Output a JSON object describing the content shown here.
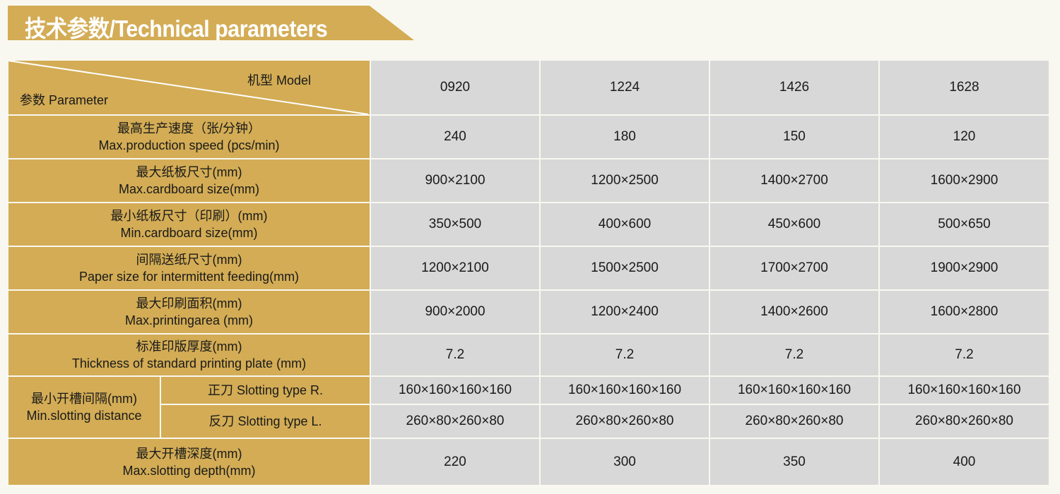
{
  "title": "技术参数/Technical parameters",
  "header": {
    "model_label": "机型 Model",
    "parameter_label": "参数 Parameter",
    "models": [
      "0920",
      "1224",
      "1426",
      "1628"
    ]
  },
  "rows": [
    {
      "zh": "最高生产速度（张/分钟）",
      "en": "Max.production speed (pcs/min)",
      "values": [
        "240",
        "180",
        "150",
        "120"
      ]
    },
    {
      "zh": "最大纸板尺寸(mm)",
      "en": "Max.cardboard size(mm)",
      "values": [
        "900×2100",
        "1200×2500",
        "1400×2700",
        "1600×2900"
      ]
    },
    {
      "zh": "最小纸板尺寸（印刷）(mm)",
      "en": "Min.cardboard size(mm)",
      "values": [
        "350×500",
        "400×600",
        "450×600",
        "500×650"
      ]
    },
    {
      "zh": "间隔送纸尺寸(mm)",
      "en": "Paper size for intermittent feeding(mm)",
      "values": [
        "1200×2100",
        "1500×2500",
        "1700×2700",
        "1900×2900"
      ]
    },
    {
      "zh": "最大印刷面积(mm)",
      "en": "Max.printingarea (mm)",
      "values": [
        "900×2000",
        "1200×2400",
        "1400×2600",
        "1600×2800"
      ]
    },
    {
      "zh": "标准印版厚度(mm)",
      "en": "Thickness of standard printing plate (mm)",
      "values": [
        "7.2",
        "7.2",
        "7.2",
        "7.2"
      ]
    }
  ],
  "slotting": {
    "zh": "最小开槽间隔(mm)",
    "en": "Min.slotting distance",
    "sub": [
      {
        "label": "正刀 Slotting type R.",
        "values": [
          "160×160×160×160",
          "160×160×160×160",
          "160×160×160×160",
          "160×160×160×160"
        ]
      },
      {
        "label": "反刀 Slotting type L.",
        "values": [
          "260×80×260×80",
          "260×80×260×80",
          "260×80×260×80",
          "260×80×260×80"
        ]
      }
    ]
  },
  "depth": {
    "zh": "最大开槽深度(mm)",
    "en": "Max.slotting depth(mm)",
    "values": [
      "220",
      "300",
      "350",
      "400"
    ]
  },
  "colors": {
    "gold": "#d3ac55",
    "cell": "#d8d8d8",
    "background": "#f9f8f0"
  }
}
